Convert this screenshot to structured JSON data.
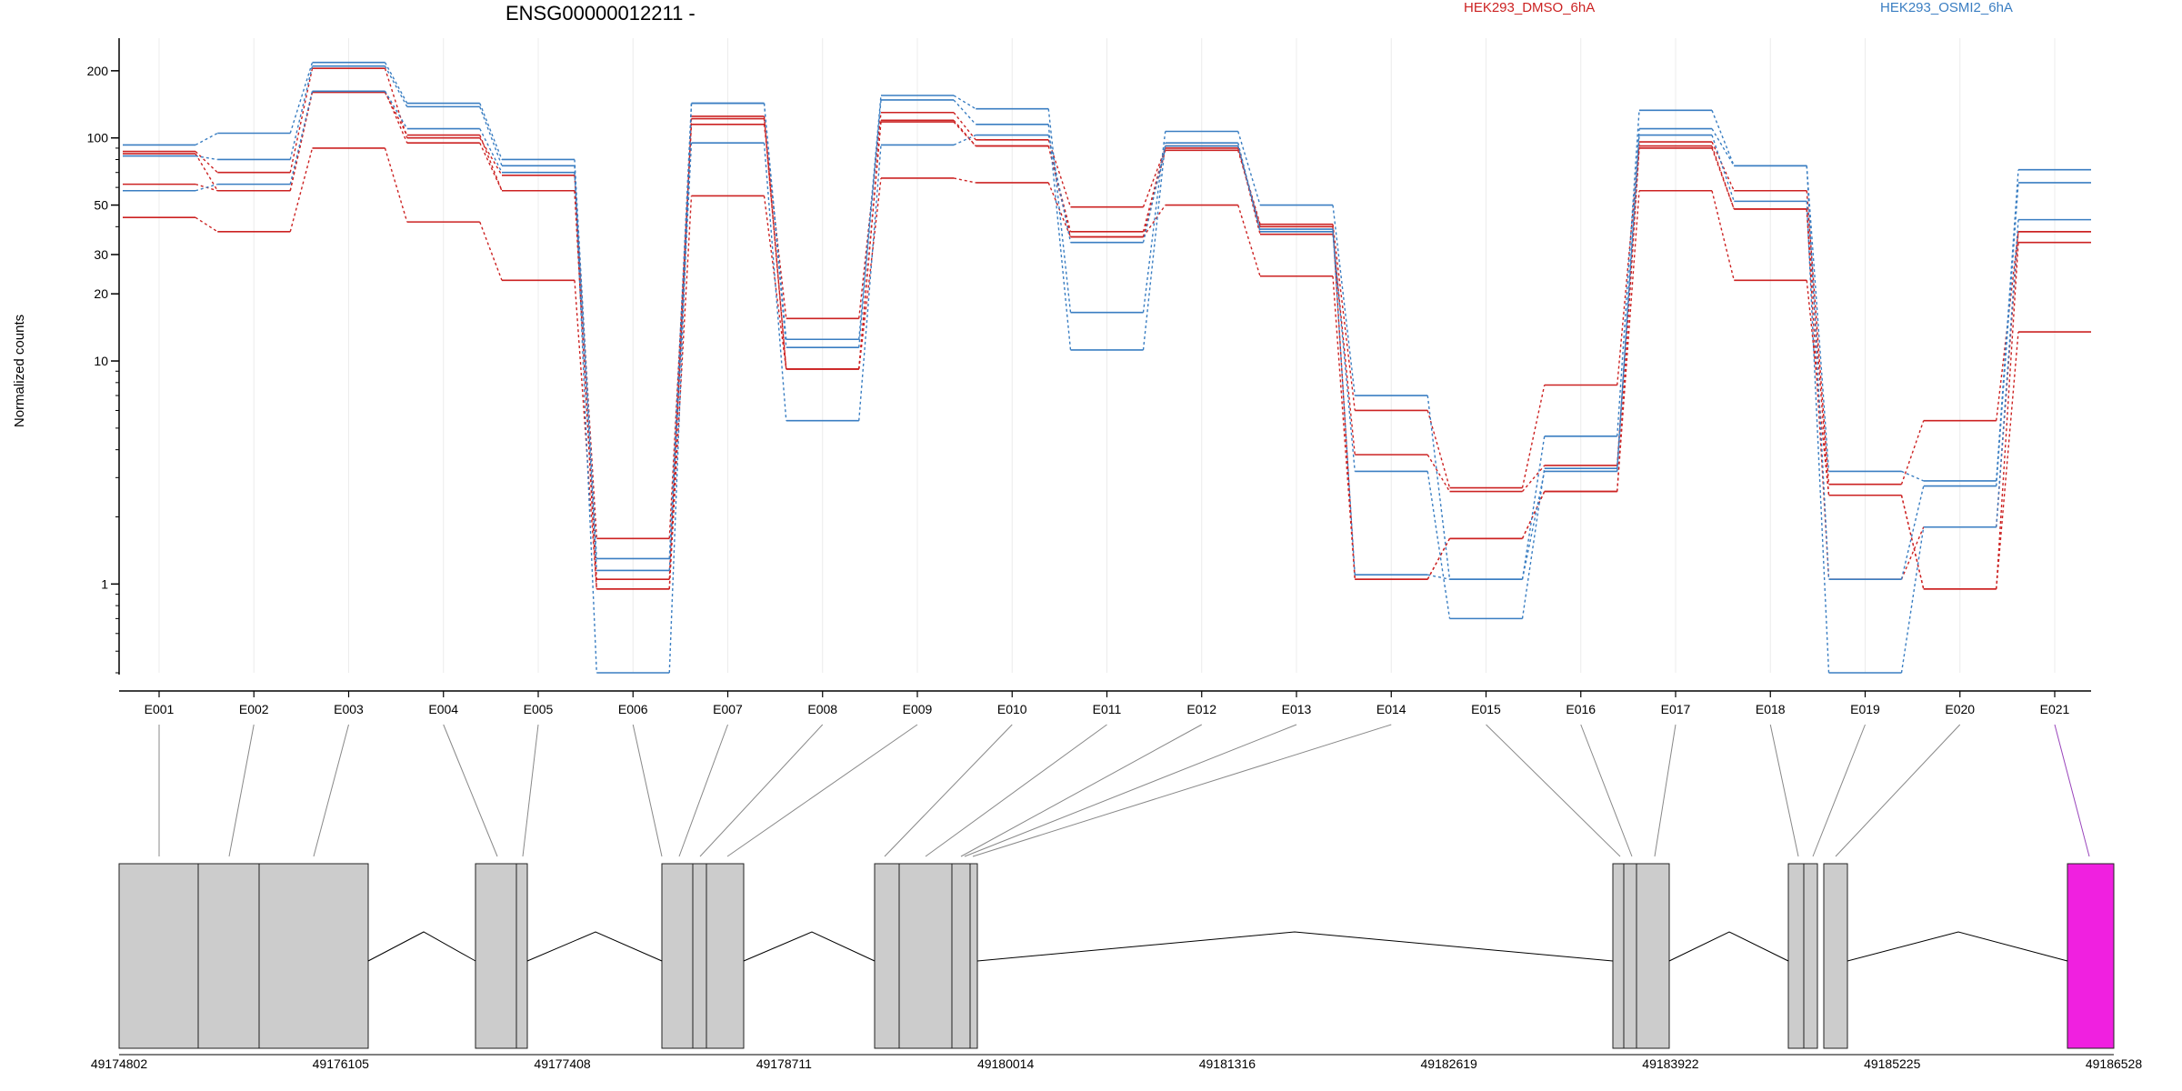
{
  "chart_data": {
    "type": "line",
    "title": "ENSG00000012211 -",
    "ylabel": "Normalized counts",
    "yscale": "log",
    "ylim": [
      0.4,
      280
    ],
    "yticks": [
      1,
      10,
      20,
      30,
      50,
      100,
      200
    ],
    "grid": "vertical",
    "legend_placement": "top",
    "categories": [
      "E001",
      "E002",
      "E003",
      "E004",
      "E005",
      "E006",
      "E007",
      "E008",
      "E009",
      "E010",
      "E011",
      "E012",
      "E013",
      "E014",
      "E015",
      "E016",
      "E017",
      "E018",
      "E019",
      "E020",
      "E021"
    ],
    "groups": [
      {
        "name": "HEK293_DMSO_6hA",
        "color": "#cc2222"
      },
      {
        "name": "HEK293_OSMI2_6hA",
        "color": "#3a7ec2"
      }
    ],
    "series": [
      {
        "group": 0,
        "values": [
          87,
          70,
          205,
          100,
          68,
          1.6,
          115,
          15.5,
          130,
          98,
          49,
          90,
          41,
          6,
          2.7,
          7.8,
          96,
          58,
          2.8,
          5.4,
          38
        ]
      },
      {
        "group": 0,
        "values": [
          85,
          58,
          162,
          95,
          58,
          0.95,
          122,
          9.2,
          118,
          92,
          38,
          92,
          37,
          3.8,
          2.6,
          3.4,
          92,
          48,
          2.5,
          0.95,
          34
        ]
      },
      {
        "group": 0,
        "values": [
          62,
          58,
          160,
          103,
          58,
          1.05,
          125,
          9.2,
          120,
          92,
          36,
          88,
          40,
          1.05,
          1.6,
          2.6,
          90,
          48,
          1.05,
          1.8,
          38
        ]
      },
      {
        "group": 0,
        "values": [
          44,
          38,
          90,
          42,
          23,
          0.95,
          55,
          9.2,
          66,
          63,
          36,
          50,
          24,
          1.05,
          1.6,
          2.6,
          58,
          23,
          2.5,
          0.95,
          13.5
        ]
      },
      {
        "group": 1,
        "values": [
          93,
          105,
          218,
          143,
          80,
          1.3,
          143,
          12.5,
          155,
          135,
          16.5,
          107,
          50,
          7,
          1.05,
          4.6,
          133,
          75,
          3.2,
          2.9,
          72
        ]
      },
      {
        "group": 1,
        "values": [
          83,
          80,
          210,
          138,
          75,
          0.4,
          143,
          11.5,
          148,
          115,
          11.2,
          95,
          38,
          3.2,
          0.7,
          3.3,
          110,
          75,
          1.05,
          2.75,
          63
        ]
      },
      {
        "group": 1,
        "values": [
          58,
          62,
          162,
          110,
          70,
          1.15,
          95,
          5.4,
          93,
          103,
          34,
          92,
          39,
          1.1,
          1.05,
          3.2,
          103,
          52,
          0.4,
          1.8,
          43
        ]
      }
    ],
    "positions": [
      "49174802",
      "49176105",
      "49177408",
      "49178711",
      "49180014",
      "49181316",
      "49182619",
      "49183922",
      "49185225",
      "49186528"
    ],
    "exon_colors": {
      "default": "#cccccc",
      "highlight": "#f020e0",
      "intron": "#000000"
    }
  }
}
